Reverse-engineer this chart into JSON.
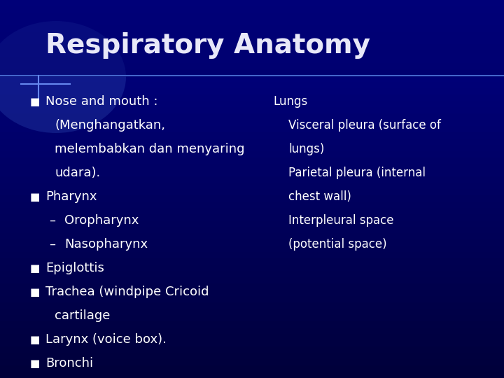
{
  "title": "Respiratory Anatomy",
  "bg_color_top": "#000066",
  "bg_color_bottom": "#000033",
  "title_color": "#e8e8f8",
  "text_color": "#ffffff",
  "title_fontsize": 28,
  "body_fontsize": 13,
  "left_bullets": [
    {
      "level": 1,
      "text": "Nose and mouth :"
    },
    {
      "level": 2,
      "text": "(Menghangatkan,"
    },
    {
      "level": 2,
      "text": "melembabkan dan menyaring"
    },
    {
      "level": 2,
      "text": "udara)."
    },
    {
      "level": 1,
      "text": "Pharynx"
    },
    {
      "level": 3,
      "text": "Oropharynx"
    },
    {
      "level": 3,
      "text": "Nasopharynx"
    },
    {
      "level": 1,
      "text": "Epiglottis"
    },
    {
      "level": 1,
      "text": "Trachea (windpipe Cricoid"
    },
    {
      "level": 2,
      "text": "cartilage"
    },
    {
      "level": 1,
      "text": "Larynx (voice box)."
    },
    {
      "level": 1,
      "text": "Bronchi"
    }
  ],
  "right_lines": [
    {
      "indent": 0,
      "text": "Lungs"
    },
    {
      "indent": 1,
      "text": "Visceral pleura (surface of"
    },
    {
      "indent": 1,
      "text": "lungs)"
    },
    {
      "indent": 1,
      "text": "Parietal pleura (internal"
    },
    {
      "indent": 1,
      "text": "chest wall)"
    },
    {
      "indent": 1,
      "text": "Interpleural space"
    },
    {
      "indent": 1,
      "text": "(potential space)"
    }
  ]
}
